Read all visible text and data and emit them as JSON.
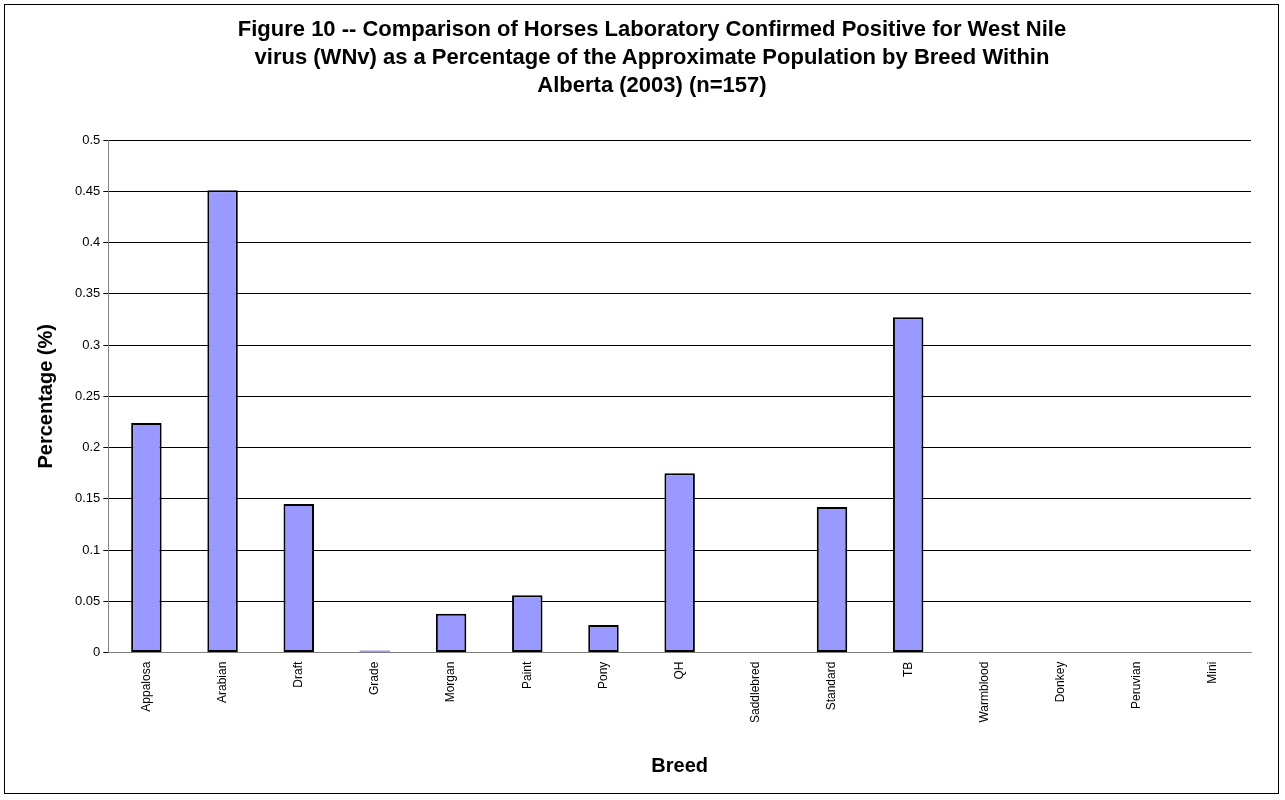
{
  "chart_data": {
    "type": "bar",
    "title": "Figure 10 --  Comparison of Horses Laboratory Confirmed Positive for West Nile virus (WNv) as a Percentage of the Approximate Population by Breed Within Alberta (2003)  (n=157)",
    "xlabel": "Breed",
    "ylabel": "Percentage (%)",
    "categories": [
      "Appalosa",
      "Arabian",
      "Draft",
      "Grade",
      "Morgan",
      "Paint",
      "Pony",
      "QH",
      "Saddlebred",
      "Standard",
      "TB",
      "Warmblood",
      "Donkey",
      "Peruvian",
      "Mini"
    ],
    "values": [
      0.224,
      0.451,
      0.145,
      0.002,
      0.038,
      0.056,
      0.027,
      0.175,
      0,
      0.142,
      0.327,
      0,
      0,
      0,
      0
    ],
    "color": "#9999ff",
    "ylim": [
      0,
      0.5
    ],
    "yticks": [
      0,
      0.05,
      0.1,
      0.15,
      0.2,
      0.25,
      0.3,
      0.35,
      0.4,
      0.45,
      0.5
    ],
    "grid": "y"
  }
}
